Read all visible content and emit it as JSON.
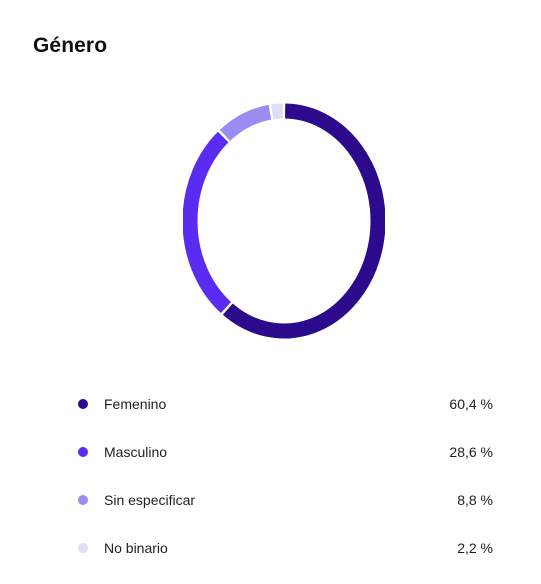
{
  "chart_data": {
    "type": "pie",
    "title": "Género",
    "categories": [
      "Femenino",
      "Masculino",
      "Sin especificar",
      "No binario"
    ],
    "values": [
      60.4,
      28.6,
      8.8,
      2.2
    ],
    "value_labels": [
      "60,4 %",
      "28,6 %",
      "8,8 %",
      "2,2 %"
    ],
    "colors": [
      "#2b0a8c",
      "#5a2bf0",
      "#9a8df2",
      "#dcdff7"
    ],
    "donut": true,
    "legend": "bottom"
  }
}
